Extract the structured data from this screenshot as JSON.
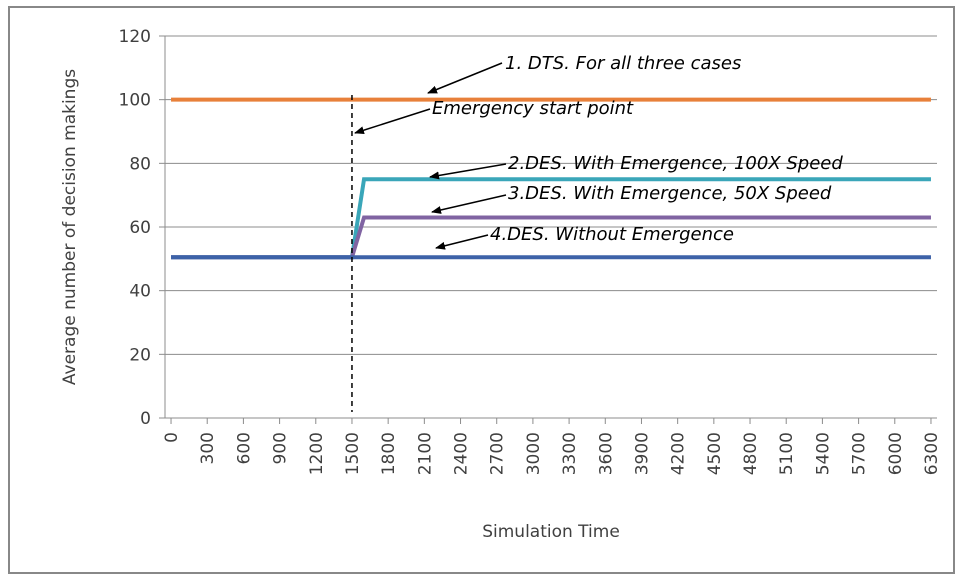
{
  "chart_data": {
    "type": "line",
    "ylabel": "Average number of decision makings",
    "xlabel": "Simulation Time",
    "x": [
      0,
      1500,
      1600,
      6300
    ],
    "series": [
      {
        "name": "1. DTS. For all three cases",
        "color": "#e8803a",
        "values": [
          100,
          100,
          100,
          100
        ]
      },
      {
        "name": "2.DES. With Emergence, 100X Speed",
        "color": "#3aa6b9",
        "values": [
          50.5,
          50.5,
          75,
          75
        ]
      },
      {
        "name": "3.DES. With Emergence, 50X Speed",
        "color": "#8064a2",
        "values": [
          50.5,
          50.5,
          63,
          63
        ]
      },
      {
        "name": "4.DES. Without Emergence",
        "color": "#3d62a8",
        "values": [
          50.5,
          50.5,
          50.5,
          50.5
        ]
      }
    ],
    "annotations": [
      {
        "text": "Emergency start point",
        "x": 1500
      }
    ],
    "xlim": [
      -50,
      6350
    ],
    "xticks": [
      0,
      300,
      600,
      900,
      1200,
      1500,
      1800,
      2100,
      2400,
      2700,
      3000,
      3300,
      3600,
      3900,
      4200,
      4500,
      4800,
      5100,
      5400,
      5700,
      6000,
      6300
    ],
    "ylim": [
      0,
      120
    ],
    "yticks": [
      0,
      20,
      40,
      60,
      80,
      100,
      120
    ],
    "grid": true
  }
}
